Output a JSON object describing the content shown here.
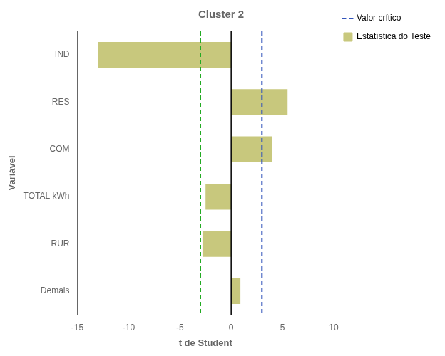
{
  "chart_data": {
    "type": "bar",
    "orientation": "horizontal",
    "title": "Cluster 2",
    "xlabel": "t de Student",
    "ylabel": "Variável",
    "categories": [
      "IND",
      "RES",
      "COM",
      "TOTAL kWh",
      "RUR",
      "Demais"
    ],
    "series": [
      {
        "name": "Estatística do Teste",
        "color": "#c8c87d",
        "values": [
          -13.0,
          5.5,
          4.0,
          -2.5,
          -2.8,
          0.9
        ]
      }
    ],
    "xlim": [
      -15,
      10
    ],
    "xticks": [
      -15,
      -10,
      -5,
      0,
      5,
      10
    ],
    "grid": false,
    "legend": "right",
    "vlines": [
      {
        "x": 3.0,
        "name": "Valor crítico",
        "color": "#3355bb",
        "line_style": "dashed"
      },
      {
        "x": -3.0,
        "color": "#22aa22",
        "line_style": "dashed"
      },
      {
        "x": 0,
        "color": "#000000",
        "line_style": "solid"
      }
    ]
  }
}
